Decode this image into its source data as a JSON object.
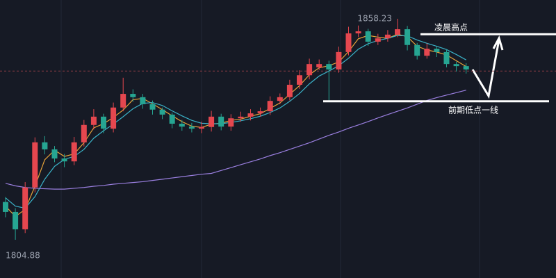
{
  "chart_data": {
    "type": "candlestick",
    "ylim": [
      1795.65,
      1862.76
    ],
    "up_color": "#e5474f",
    "down_color": "#26a592",
    "open": [
      1814.0,
      1811.6,
      1807.4,
      1817.5,
      1828.4,
      1826.7,
      1824.5,
      1823.8,
      1828.4,
      1832.6,
      1834.6,
      1831.7,
      1836.8,
      1840.1,
      1839.3,
      1837.6,
      1836.3,
      1835.1,
      1832.9,
      1832.2,
      1831.7,
      1832.1,
      1834.6,
      1832.2,
      1834.2,
      1834.6,
      1835.4,
      1835.9,
      1838.4,
      1839.3,
      1842.3,
      1844.6,
      1846.5,
      1847.3,
      1846.0,
      1850.2,
      1854.7,
      1855.2,
      1852.7,
      1853.5,
      1854.4,
      1855.7,
      1851.9,
      1849.3,
      1851.0,
      1850.2,
      1847.3,
      1846.8
    ],
    "high": [
      1815.2,
      1812.5,
      1818.8,
      1829.6,
      1829.9,
      1827.5,
      1825.6,
      1829.7,
      1833.8,
      1836.4,
      1835.3,
      1838.0,
      1844.0,
      1841.2,
      1840.1,
      1838.5,
      1836.8,
      1835.6,
      1833.8,
      1833.1,
      1833.4,
      1836.0,
      1835.3,
      1835.2,
      1835.8,
      1836.4,
      1836.8,
      1839.5,
      1840.2,
      1843.5,
      1845.8,
      1848.6,
      1848.4,
      1848.1,
      1851.5,
      1856.3,
      1856.6,
      1855.8,
      1854.6,
      1855.5,
      1858.23,
      1856.5,
      1852.4,
      1852.3,
      1851.5,
      1850.8,
      1847.9,
      1847.5
    ],
    "low": [
      1810.3,
      1804.88,
      1806.5,
      1816.3,
      1825.5,
      1823.6,
      1822.4,
      1822.9,
      1827.4,
      1831.5,
      1830.6,
      1830.8,
      1835.9,
      1838.2,
      1836.5,
      1835.1,
      1834.0,
      1831.8,
      1831.2,
      1830.8,
      1830.6,
      1831.0,
      1831.3,
      1831.2,
      1833.4,
      1833.7,
      1834.6,
      1835.0,
      1837.6,
      1838.5,
      1841.3,
      1843.6,
      1845.9,
      1838.4,
      1845.2,
      1849.4,
      1853.8,
      1851.7,
      1851.9,
      1852.7,
      1853.8,
      1850.6,
      1848.4,
      1848.6,
      1849.0,
      1846.5,
      1845.5,
      1845.0
    ],
    "close": [
      1811.6,
      1807.4,
      1817.5,
      1828.4,
      1826.7,
      1824.5,
      1823.8,
      1828.4,
      1832.6,
      1834.6,
      1831.7,
      1836.8,
      1840.1,
      1839.3,
      1837.6,
      1836.3,
      1835.1,
      1832.9,
      1832.2,
      1831.7,
      1832.1,
      1834.6,
      1832.2,
      1834.2,
      1834.6,
      1835.4,
      1835.9,
      1838.4,
      1839.3,
      1842.3,
      1844.6,
      1847.3,
      1847.3,
      1846.0,
      1850.2,
      1854.7,
      1855.2,
      1852.7,
      1853.5,
      1854.4,
      1855.7,
      1851.9,
      1849.3,
      1851.0,
      1850.2,
      1847.3,
      1846.8,
      1846.0
    ],
    "series": [
      {
        "color": "#e8a43a",
        "values": [
          1813.0,
          1810.5,
          1812.2,
          1817.8,
          1824.2,
          1826.5,
          1825.0,
          1825.6,
          1828.3,
          1831.9,
          1832.9,
          1834.4,
          1836.2,
          1838.7,
          1839.0,
          1837.7,
          1836.3,
          1834.8,
          1833.4,
          1832.3,
          1832.0,
          1832.8,
          1833.0,
          1833.7,
          1834.0,
          1834.7,
          1835.3,
          1836.6,
          1837.9,
          1840.0,
          1842.1,
          1844.7,
          1846.4,
          1846.9,
          1847.8,
          1850.3,
          1853.4,
          1854.2,
          1853.8,
          1853.5,
          1854.5,
          1853.9,
          1851.6,
          1850.7,
          1850.2,
          1849.5,
          1848.1,
          1846.7
        ]
      },
      {
        "color": "#3bb3c9",
        "values": [
          1815.0,
          1813.0,
          1812.5,
          1815.3,
          1819.5,
          1822.6,
          1824.3,
          1825.0,
          1826.7,
          1829.4,
          1831.2,
          1832.8,
          1834.6,
          1836.5,
          1837.8,
          1838.0,
          1837.3,
          1836.0,
          1834.8,
          1833.7,
          1833.0,
          1832.9,
          1832.9,
          1833.2,
          1833.6,
          1834.1,
          1834.7,
          1835.6,
          1836.7,
          1838.3,
          1840.2,
          1842.5,
          1844.4,
          1845.6,
          1846.9,
          1848.7,
          1850.9,
          1852.2,
          1853.0,
          1853.5,
          1854.2,
          1854.1,
          1853.1,
          1852.3,
          1851.6,
          1850.8,
          1849.6,
          1848.3
        ]
      },
      {
        "color": "#9a7fe0",
        "values": [
          1818.5,
          1817.9,
          1817.5,
          1817.3,
          1817.2,
          1817.1,
          1817.1,
          1817.3,
          1817.5,
          1817.8,
          1818.0,
          1818.3,
          1818.5,
          1818.7,
          1818.9,
          1819.2,
          1819.5,
          1819.8,
          1820.1,
          1820.4,
          1820.7,
          1820.9,
          1821.6,
          1822.3,
          1823.0,
          1823.7,
          1824.4,
          1825.2,
          1825.9,
          1826.7,
          1827.5,
          1828.3,
          1829.2,
          1830.1,
          1830.9,
          1831.8,
          1832.6,
          1833.4,
          1834.3,
          1835.1,
          1835.9,
          1836.7,
          1837.6,
          1838.5,
          1839.2,
          1839.8,
          1840.4,
          1841.0
        ]
      }
    ],
    "high_label": "1858.23",
    "low_label": "1804.88",
    "price_line": 1845.6,
    "levels": [
      {
        "label": "凌晨高点",
        "value": 1854.5
      },
      {
        "label": "前期低点一线",
        "value": 1838.3
      }
    ]
  }
}
